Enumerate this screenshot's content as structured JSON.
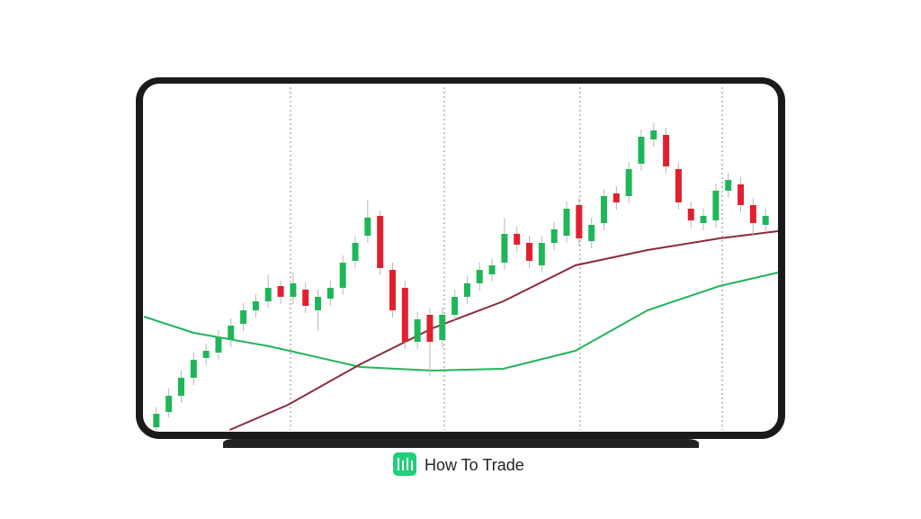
{
  "chart_data": {
    "type": "candlestick",
    "ylim": [
      0,
      383
    ],
    "xlim": [
      0,
      51
    ],
    "up_color": "#1fb65a",
    "down_color": "#e0202e",
    "candles": [
      {
        "open": 3,
        "high": 26,
        "low": 0,
        "close": 18
      },
      {
        "open": 20,
        "high": 46,
        "low": 14,
        "close": 38
      },
      {
        "open": 38,
        "high": 66,
        "low": 30,
        "close": 58
      },
      {
        "open": 58,
        "high": 86,
        "low": 50,
        "close": 78
      },
      {
        "open": 80,
        "high": 96,
        "low": 72,
        "close": 88
      },
      {
        "open": 86,
        "high": 111,
        "low": 78,
        "close": 103
      },
      {
        "open": 100,
        "high": 124,
        "low": 92,
        "close": 116
      },
      {
        "open": 118,
        "high": 141,
        "low": 110,
        "close": 133
      },
      {
        "open": 133,
        "high": 151,
        "low": 125,
        "close": 143
      },
      {
        "open": 143,
        "high": 172,
        "low": 135,
        "close": 158
      },
      {
        "open": 160,
        "high": 166,
        "low": 140,
        "close": 148
      },
      {
        "open": 148,
        "high": 175,
        "low": 140,
        "close": 163
      },
      {
        "open": 156,
        "high": 164,
        "low": 130,
        "close": 138
      },
      {
        "open": 133,
        "high": 156,
        "low": 110,
        "close": 148
      },
      {
        "open": 146,
        "high": 166,
        "low": 138,
        "close": 158
      },
      {
        "open": 158,
        "high": 194,
        "low": 150,
        "close": 186
      },
      {
        "open": 188,
        "high": 216,
        "low": 180,
        "close": 208
      },
      {
        "open": 216,
        "high": 256,
        "low": 208,
        "close": 236
      },
      {
        "open": 238,
        "high": 244,
        "low": 172,
        "close": 180
      },
      {
        "open": 178,
        "high": 186,
        "low": 125,
        "close": 133
      },
      {
        "open": 158,
        "high": 166,
        "low": 90,
        "close": 98
      },
      {
        "open": 98,
        "high": 131,
        "low": 90,
        "close": 123
      },
      {
        "open": 128,
        "high": 136,
        "low": 60,
        "close": 98
      },
      {
        "open": 100,
        "high": 136,
        "low": 92,
        "close": 128
      },
      {
        "open": 128,
        "high": 156,
        "low": 120,
        "close": 148
      },
      {
        "open": 148,
        "high": 171,
        "low": 140,
        "close": 163
      },
      {
        "open": 163,
        "high": 186,
        "low": 155,
        "close": 178
      },
      {
        "open": 173,
        "high": 191,
        "low": 165,
        "close": 183
      },
      {
        "open": 186,
        "high": 236,
        "low": 178,
        "close": 218
      },
      {
        "open": 218,
        "high": 226,
        "low": 198,
        "close": 206
      },
      {
        "open": 208,
        "high": 216,
        "low": 180,
        "close": 188
      },
      {
        "open": 183,
        "high": 216,
        "low": 175,
        "close": 208
      },
      {
        "open": 208,
        "high": 231,
        "low": 200,
        "close": 223
      },
      {
        "open": 216,
        "high": 254,
        "low": 208,
        "close": 246
      },
      {
        "open": 250,
        "high": 258,
        "low": 205,
        "close": 213
      },
      {
        "open": 210,
        "high": 236,
        "low": 202,
        "close": 228
      },
      {
        "open": 230,
        "high": 268,
        "low": 222,
        "close": 260
      },
      {
        "open": 263,
        "high": 271,
        "low": 245,
        "close": 253
      },
      {
        "open": 260,
        "high": 298,
        "low": 252,
        "close": 290
      },
      {
        "open": 296,
        "high": 334,
        "low": 288,
        "close": 326
      },
      {
        "open": 323,
        "high": 341,
        "low": 315,
        "close": 333
      },
      {
        "open": 328,
        "high": 336,
        "low": 285,
        "close": 293
      },
      {
        "open": 290,
        "high": 298,
        "low": 245,
        "close": 253
      },
      {
        "open": 246,
        "high": 254,
        "low": 225,
        "close": 233
      },
      {
        "open": 230,
        "high": 246,
        "low": 222,
        "close": 238
      },
      {
        "open": 233,
        "high": 274,
        "low": 225,
        "close": 266
      },
      {
        "open": 266,
        "high": 286,
        "low": 258,
        "close": 278
      },
      {
        "open": 273,
        "high": 281,
        "low": 242,
        "close": 250
      },
      {
        "open": 250,
        "high": 258,
        "low": 215,
        "close": 230
      },
      {
        "open": 228,
        "high": 246,
        "low": 220,
        "close": 238
      }
    ],
    "series": [
      {
        "color": "#22b45a",
        "x": [
          0,
          4.0,
          10.1,
          17.4,
          23.2,
          28.9,
          34.7,
          40.5,
          46.3,
          51
        ],
        "values": [
          126,
          108,
          93,
          70,
          66,
          68,
          88,
          133,
          160,
          175
        ]
      },
      {
        "color": "#8b2a3a",
        "x": [
          6.9,
          11.6,
          17.4,
          23.2,
          28.9,
          34.7,
          40.5,
          46.3,
          51
        ],
        "values": [
          0,
          28,
          73,
          113,
          143,
          183,
          200,
          213,
          221
        ]
      }
    ]
  },
  "brand": "How To Trade"
}
